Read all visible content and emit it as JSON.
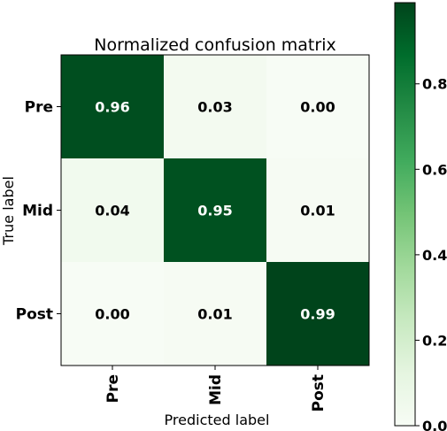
{
  "chart_data": {
    "type": "heatmap",
    "title": "Normalized confusion matrix",
    "xlabel": "Predicted label",
    "ylabel": "True label",
    "x_categories": [
      "Pre",
      "Mid",
      "Post"
    ],
    "y_categories": [
      "Pre",
      "Mid",
      "Post"
    ],
    "values": [
      [
        0.96,
        0.03,
        0.0
      ],
      [
        0.04,
        0.95,
        0.01
      ],
      [
        0.0,
        0.01,
        0.99
      ]
    ],
    "value_labels": [
      [
        "0.96",
        "0.03",
        "0.00"
      ],
      [
        "0.04",
        "0.95",
        "0.01"
      ],
      [
        "0.00",
        "0.01",
        "0.99"
      ]
    ],
    "colormap": "Greens",
    "colorbar": {
      "range": [
        0.0,
        0.99
      ],
      "ticks": [
        0.0,
        0.2,
        0.4,
        0.6,
        0.8
      ],
      "tick_labels": [
        "0.0",
        "0.2",
        "0.4",
        "0.6",
        "0.8"
      ]
    },
    "colors": {
      "low": "#f7fcf5",
      "high": "#00441b",
      "text_on_dark": "#ffffff",
      "text_on_light": "#000000"
    }
  }
}
